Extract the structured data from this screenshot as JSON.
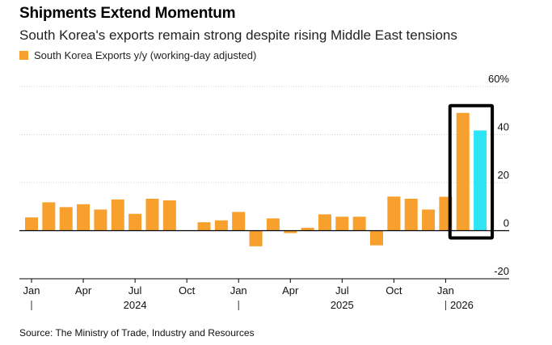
{
  "header": {
    "title": "Shipments Extend Momentum",
    "subtitle": "South Korea's exports remain strong despite rising Middle East tensions"
  },
  "legend": {
    "label": "South Korea Exports y/y (working-day adjusted)",
    "color": "#f7a02d"
  },
  "footer": {
    "source": "Source: The Ministry of Trade, Industry and Resources"
  },
  "colors": {
    "bar": "#f7a02d",
    "highlight_bar": "#2ee5f5",
    "box": "#000000",
    "axis": "#000000",
    "grid": "#d0d0d0"
  },
  "chart_data": {
    "type": "bar",
    "categories": [
      "2024-01",
      "2024-02",
      "2024-03",
      "2024-04",
      "2024-05",
      "2024-06",
      "2024-07",
      "2024-08",
      "2024-09",
      "2024-10",
      "2024-11",
      "2024-12",
      "2025-01",
      "2025-02",
      "2025-03",
      "2025-04",
      "2025-05",
      "2025-06",
      "2025-07",
      "2025-08",
      "2025-09",
      "2025-10",
      "2025-11",
      "2025-12",
      "2026-01",
      "2026-02",
      "2026-03"
    ],
    "values": [
      5.5,
      11.8,
      9.8,
      11,
      8.8,
      13,
      7,
      13.3,
      12.6,
      0,
      3.5,
      4.3,
      7.8,
      -6.5,
      5.1,
      -1,
      1.2,
      6.8,
      5.8,
      5.8,
      -6.1,
      14.2,
      13.3,
      8.8,
      14.1,
      49,
      41.7
    ],
    "highlight_index": 26,
    "boxed_range": [
      25,
      26
    ],
    "y_ticks": [
      -20,
      0,
      20,
      40,
      60
    ],
    "y_tick_labels": [
      "-20",
      "0",
      "20",
      "40",
      "60%"
    ],
    "ylim": [
      -20,
      60
    ],
    "x_tick_labels": [
      {
        "index": 0,
        "label": "Jan"
      },
      {
        "index": 3,
        "label": "Apr"
      },
      {
        "index": 6,
        "label": "Jul"
      },
      {
        "index": 9,
        "label": "Oct"
      },
      {
        "index": 12,
        "label": "Jan"
      },
      {
        "index": 15,
        "label": "Apr"
      },
      {
        "index": 18,
        "label": "Jul"
      },
      {
        "index": 21,
        "label": "Oct"
      },
      {
        "index": 24,
        "label": "Jan"
      }
    ],
    "year_labels": [
      {
        "start_index": 0,
        "label": "2024"
      },
      {
        "start_index": 12,
        "label": "2025"
      },
      {
        "start_index": 24,
        "label": "2026"
      }
    ],
    "xlabel": "",
    "ylabel": "",
    "grid": true,
    "legend_position": "top-left"
  }
}
